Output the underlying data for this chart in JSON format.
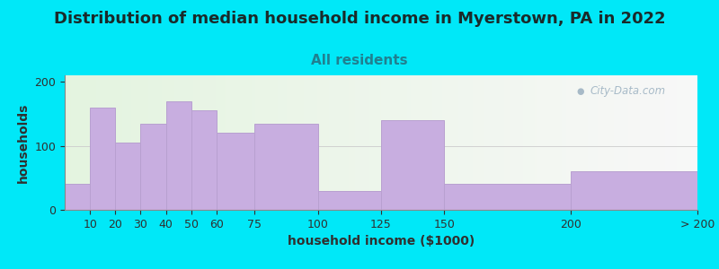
{
  "title": "Distribution of median household income in Myerstown, PA in 2022",
  "subtitle": "All residents",
  "xlabel": "household income ($1000)",
  "ylabel": "households",
  "bin_edges": [
    0,
    10,
    20,
    30,
    40,
    50,
    60,
    75,
    100,
    125,
    150,
    200,
    250
  ],
  "bin_labels": [
    "10",
    "20",
    "30",
    "40",
    "50",
    "60",
    "75",
    "100",
    "125",
    "150",
    "200",
    "> 200"
  ],
  "values": [
    40,
    160,
    105,
    135,
    170,
    155,
    120,
    135,
    30,
    140,
    40,
    60
  ],
  "bar_color": "#c8aee0",
  "bar_edge_color": "#b8a0d0",
  "background_outer": "#00e8f8",
  "ylim": [
    0,
    210
  ],
  "yticks": [
    0,
    100,
    200
  ],
  "title_fontsize": 13,
  "subtitle_fontsize": 11,
  "subtitle_color": "#208090",
  "axis_label_fontsize": 10,
  "tick_fontsize": 9,
  "watermark_text": "City-Data.com",
  "watermark_color": "#9ab0c0"
}
